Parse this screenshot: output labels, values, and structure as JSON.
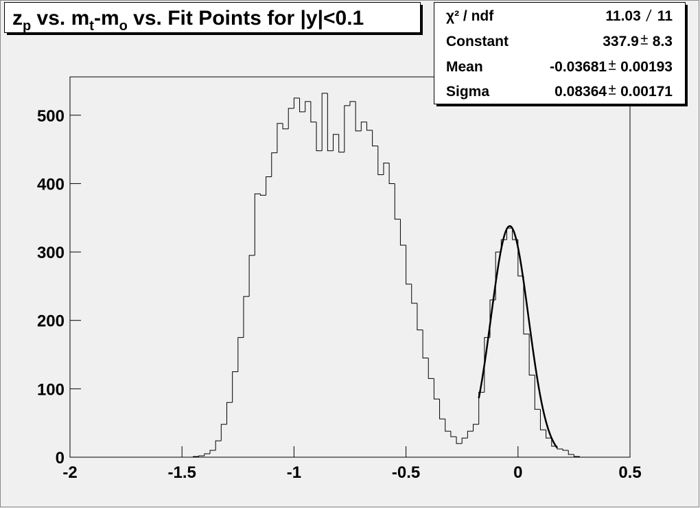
{
  "chart_data": {
    "type": "histogram",
    "title": [
      {
        "text": "z"
      },
      {
        "text": "p",
        "sub": true
      },
      {
        "text": " vs. m"
      },
      {
        "text": "t",
        "sub": true
      },
      {
        "text": "-m"
      },
      {
        "text": "o",
        "sub": true
      },
      {
        "text": " vs. Fit Points for |y|<0.1"
      }
    ],
    "bins": [
      -2,
      -1.975,
      -1.95,
      -1.925,
      -1.9,
      -1.875,
      -1.85,
      -1.825,
      -1.8,
      -1.775,
      -1.75,
      -1.725,
      -1.7,
      -1.675,
      -1.65,
      -1.625,
      -1.6,
      -1.575,
      -1.55,
      -1.525,
      -1.5,
      -1.475,
      -1.45,
      -1.425,
      -1.4,
      -1.375,
      -1.35,
      -1.325,
      -1.3,
      -1.275,
      -1.25,
      -1.225,
      -1.2,
      -1.175,
      -1.15,
      -1.125,
      -1.1,
      -1.075,
      -1.05,
      -1.025,
      -1,
      -0.975,
      -0.95,
      -0.925,
      -0.9,
      -0.875,
      -0.85,
      -0.825,
      -0.8,
      -0.775,
      -0.75,
      -0.725,
      -0.7,
      -0.675,
      -0.65,
      -0.625,
      -0.6,
      -0.575,
      -0.55,
      -0.525,
      -0.5,
      -0.475,
      -0.45,
      -0.425,
      -0.4,
      -0.375,
      -0.35,
      -0.325,
      -0.3,
      -0.275,
      -0.25,
      -0.225,
      -0.2,
      -0.175,
      -0.15,
      -0.125,
      -0.1,
      -0.075,
      -0.05,
      -0.025,
      0,
      0.025,
      0.05,
      0.075,
      0.1,
      0.125,
      0.15,
      0.175,
      0.2,
      0.225,
      0.25,
      0.275,
      0.3,
      0.325,
      0.35,
      0.375,
      0.4,
      0.425,
      0.45,
      0.475,
      0.5
    ],
    "values": [
      0,
      0,
      0,
      0,
      0,
      0,
      0,
      0,
      0,
      0,
      0,
      0,
      0,
      0,
      0,
      0,
      0,
      0,
      0,
      0,
      0,
      0,
      1,
      2,
      5,
      10,
      24,
      48,
      80,
      125,
      175,
      235,
      295,
      385,
      383,
      410,
      445,
      488,
      480,
      510,
      525,
      505,
      520,
      490,
      448,
      532,
      448,
      472,
      446,
      514,
      520,
      477,
      490,
      478,
      455,
      413,
      430,
      400,
      348,
      310,
      253,
      225,
      186,
      145,
      115,
      85,
      56,
      38,
      30,
      20,
      28,
      38,
      48,
      95,
      175,
      230,
      300,
      318,
      335,
      318,
      265,
      180,
      120,
      70,
      40,
      28,
      16,
      12,
      10,
      4,
      1,
      0,
      0,
      0,
      0,
      0,
      0,
      0,
      0,
      0
    ],
    "color": "#000000",
    "xlim": [
      -2,
      0.5
    ],
    "xticks": [
      -2,
      -1.5,
      -1,
      -0.5,
      0,
      0.5
    ],
    "ylim": [
      0,
      556
    ],
    "yticks": [
      0,
      100,
      200,
      300,
      400,
      500
    ],
    "fit": {
      "type": "gaus",
      "color": "#000000",
      "range": [
        -0.175,
        0.175
      ],
      "labels": [
        "χ² / ndf",
        "Constant",
        "Mean",
        "Sigma"
      ],
      "chi2": 11.03,
      "ndf": 11,
      "constant": 337.9,
      "constant_error": 8.3,
      "mean": -0.03681,
      "mean_error": 0.00193,
      "sigma": 0.08364,
      "sigma_error": 0.00171
    }
  }
}
